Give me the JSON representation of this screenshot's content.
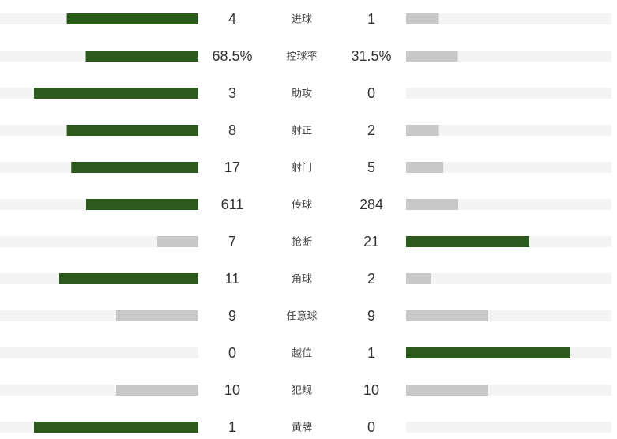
{
  "chart_data": {
    "type": "bar",
    "categories": [
      "进球",
      "控球率",
      "助攻",
      "射正",
      "射门",
      "传球",
      "抢断",
      "角球",
      "任意球",
      "越位",
      "犯规",
      "黄牌"
    ],
    "series": [
      {
        "values": [
          4,
          68.5,
          3,
          8,
          17,
          611,
          7,
          11,
          9,
          0,
          10,
          1
        ],
        "value_labels": [
          null,
          "68.5%",
          null,
          null,
          null,
          null,
          null,
          null,
          null,
          null,
          null,
          null
        ]
      },
      {
        "values": [
          1,
          31.5,
          0,
          2,
          5,
          284,
          21,
          2,
          9,
          1,
          10,
          0
        ],
        "value_labels": [
          null,
          "31.5%",
          null,
          null,
          null,
          null,
          null,
          null,
          null,
          null,
          null,
          null
        ]
      }
    ],
    "leading_color": "#2b5a1c",
    "trailing_color": "#c8c8c8",
    "track_color": "#f4f4f4"
  }
}
